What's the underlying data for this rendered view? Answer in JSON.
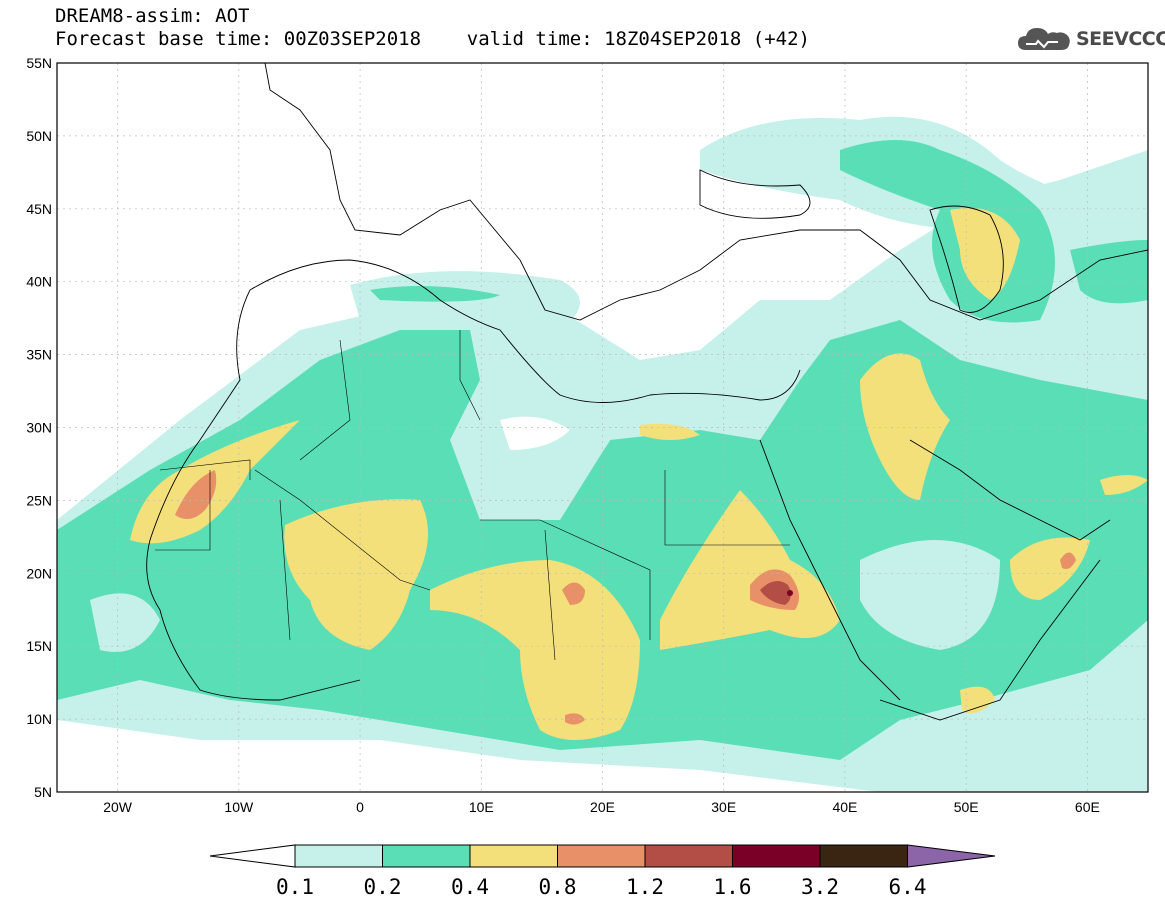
{
  "header": {
    "title_line1": "DREAM8-assim: AOT",
    "title_line2": "Forecast base time: 00Z03SEP2018    valid time: 18Z04SEP2018 (+42)"
  },
  "logo": {
    "text": "SEEVCCC",
    "icon": "cloud-icon"
  },
  "map": {
    "lon_range": [
      -25,
      65
    ],
    "lat_range": [
      5,
      55
    ],
    "lat_labels": [
      "55N",
      "50N",
      "45N",
      "40N",
      "35N",
      "30N",
      "25N",
      "20N",
      "15N",
      "10N",
      "5N"
    ],
    "lon_labels": [
      "20W",
      "10W",
      "0",
      "10E",
      "20E",
      "30E",
      "40E",
      "50E",
      "60E"
    ]
  },
  "colorbar": {
    "labels": [
      "0.1",
      "0.2",
      "0.4",
      "0.8",
      "1.2",
      "1.6",
      "3.2",
      "6.4"
    ],
    "colors": [
      "#ffffff",
      "#c6f0ea",
      "#5adeb6",
      "#f3e07a",
      "#e89068",
      "#b24e45",
      "#7a0028",
      "#3a2412",
      "#8c64a8"
    ]
  }
}
